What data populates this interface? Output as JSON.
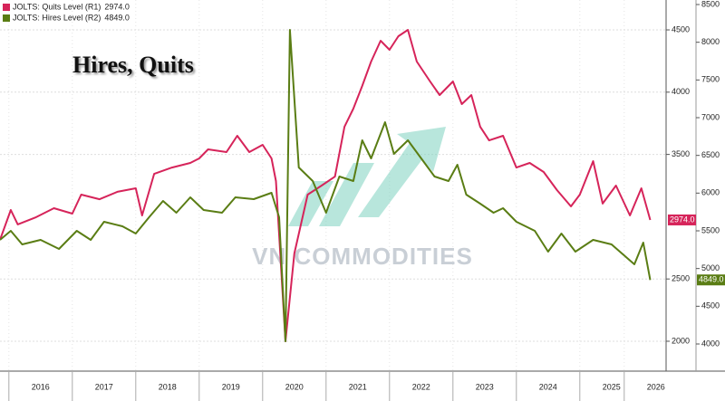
{
  "chart_data": {
    "type": "line",
    "title": "Hires, Quits",
    "watermark": "VN COMMODITIES",
    "xlim": [
      2015.86,
      2026.36
    ],
    "xticks": [
      {
        "value": 2016.5,
        "label": "2016"
      },
      {
        "value": 2017.5,
        "label": "2017"
      },
      {
        "value": 2018.5,
        "label": "2018"
      },
      {
        "value": 2019.5,
        "label": "2019"
      },
      {
        "value": 2020.5,
        "label": "2020"
      },
      {
        "value": 2021.5,
        "label": "2021"
      },
      {
        "value": 2022.5,
        "label": "2022"
      },
      {
        "value": 2023.5,
        "label": "2023"
      },
      {
        "value": 2024.5,
        "label": "2024"
      },
      {
        "value": 2025.5,
        "label": "2025"
      },
      {
        "value": 2026.2,
        "label": "2026"
      }
    ],
    "ylim": [
      1760,
      4740
    ],
    "yticks": [
      2000,
      2500,
      3500,
      4000,
      4500
    ],
    "y2lim": [
      3640,
      8560
    ],
    "y2ticks": [
      4000,
      4500,
      5000,
      5500,
      6000,
      6500,
      7000,
      7500,
      8000,
      8500
    ],
    "grid": true,
    "series": [
      {
        "name": "JOLTS: Quits Level (R1)",
        "color": "#d6245a",
        "last_label": "2974.0",
        "x": [
          2015.86,
          2016.03,
          2016.14,
          2016.43,
          2016.71,
          2017.0,
          2017.14,
          2017.43,
          2017.71,
          2018.0,
          2018.1,
          2018.29,
          2018.57,
          2018.86,
          2019.0,
          2019.14,
          2019.43,
          2019.6,
          2019.79,
          2020.0,
          2020.14,
          2020.21,
          2020.36,
          2020.5,
          2020.71,
          2020.93,
          2021.14,
          2021.29,
          2021.43,
          2021.57,
          2021.71,
          2021.86,
          2022.0,
          2022.14,
          2022.29,
          2022.43,
          2022.64,
          2022.79,
          2023.0,
          2023.14,
          2023.29,
          2023.43,
          2023.57,
          2023.79,
          2024.0,
          2024.21,
          2024.43,
          2024.64,
          2024.86,
          2025.0,
          2025.21,
          2025.36,
          2025.57,
          2025.79,
          2025.97,
          2026.11
        ],
        "values": [
          2814,
          3054,
          2938,
          2996,
          3068,
          3025,
          3177,
          3140,
          3200,
          3228,
          3010,
          3344,
          3395,
          3432,
          3468,
          3541,
          3519,
          3650,
          3519,
          3577,
          3468,
          3286,
          2000,
          2705,
          3177,
          3250,
          3322,
          3722,
          3868,
          4050,
          4246,
          4413,
          4340,
          4449,
          4500,
          4246,
          4086,
          3977,
          4086,
          3904,
          3977,
          3722,
          3613,
          3650,
          3395,
          3432,
          3359,
          3214,
          3083,
          3177,
          3446,
          3105,
          3250,
          3010,
          3228,
          2974
        ]
      },
      {
        "name": "JOLTS: Hires Level (R2)",
        "color": "#5a7d14",
        "axis": "y2",
        "last_label": "4849.0",
        "x": [
          2015.86,
          2016.03,
          2016.21,
          2016.5,
          2016.79,
          2017.07,
          2017.29,
          2017.5,
          2017.79,
          2018.0,
          2018.21,
          2018.43,
          2018.64,
          2018.86,
          2019.07,
          2019.36,
          2019.57,
          2019.86,
          2020.14,
          2020.26,
          2020.36,
          2020.43,
          2020.57,
          2020.79,
          2021.0,
          2021.21,
          2021.43,
          2021.57,
          2021.71,
          2021.93,
          2022.07,
          2022.29,
          2022.5,
          2022.71,
          2022.93,
          2023.07,
          2023.21,
          2023.43,
          2023.64,
          2023.79,
          2024.0,
          2024.29,
          2024.5,
          2024.71,
          2024.93,
          2025.21,
          2025.5,
          2025.86,
          2026.0,
          2026.11
        ],
        "values": [
          5380,
          5500,
          5320,
          5380,
          5260,
          5500,
          5380,
          5620,
          5560,
          5464,
          5680,
          5896,
          5740,
          5944,
          5776,
          5740,
          5944,
          5920,
          6004,
          5680,
          4036,
          8164,
          6340,
          6160,
          5740,
          6220,
          6160,
          6700,
          6460,
          6940,
          6520,
          6700,
          6460,
          6220,
          6160,
          6376,
          5980,
          5860,
          5740,
          5800,
          5620,
          5500,
          5224,
          5464,
          5224,
          5380,
          5320,
          5056,
          5344,
          4849
        ]
      }
    ]
  }
}
